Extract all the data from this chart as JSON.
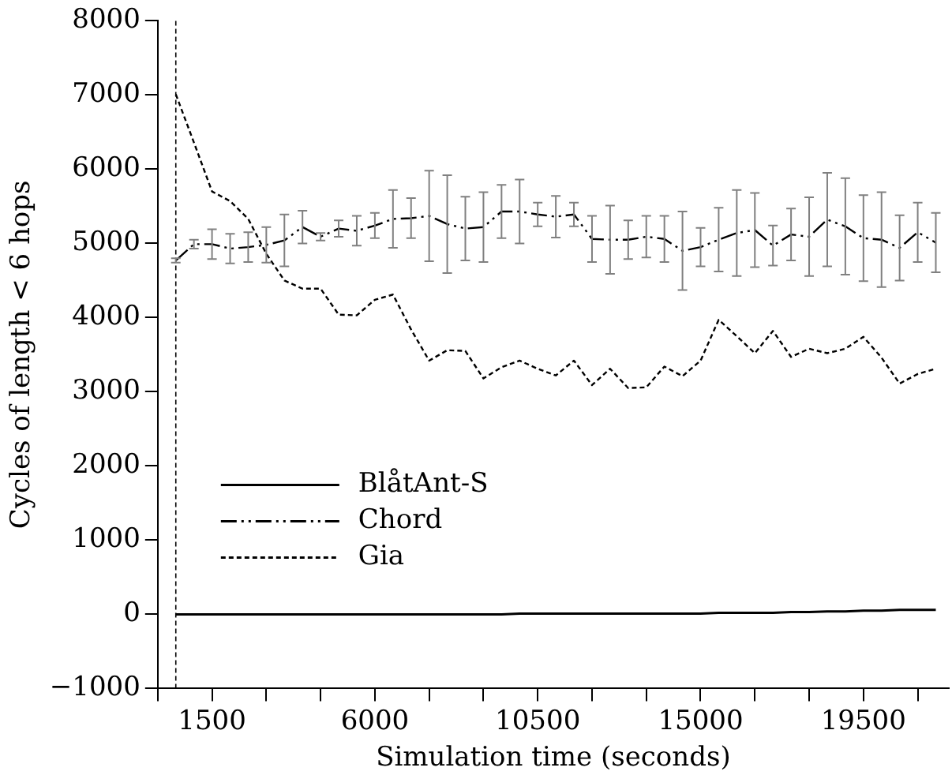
{
  "chart_data": {
    "type": "line",
    "xlabel": "Simulation time (seconds)",
    "ylabel": "Cycles of length < 6 hops",
    "x": [
      500,
      1000,
      1500,
      2000,
      2500,
      3000,
      3500,
      4000,
      4500,
      5000,
      5500,
      6000,
      6500,
      7000,
      7500,
      8000,
      8500,
      9000,
      9500,
      10000,
      10500,
      11000,
      11500,
      12000,
      12500,
      13000,
      13500,
      14000,
      14500,
      15000,
      15500,
      16000,
      16500,
      17000,
      17500,
      18000,
      18500,
      19000,
      19500,
      20000,
      20500,
      21000,
      21500
    ],
    "series": [
      {
        "name": "BlåtAnt-S",
        "color": "#000000",
        "line_style": "solid",
        "values": [
          0,
          0,
          0,
          0,
          0,
          0,
          0,
          0,
          0,
          0,
          0,
          0,
          0,
          0,
          0,
          0,
          0,
          0,
          0,
          10,
          10,
          10,
          10,
          10,
          10,
          10,
          10,
          10,
          10,
          10,
          20,
          20,
          20,
          20,
          30,
          30,
          40,
          40,
          50,
          50,
          60,
          60,
          60
        ]
      },
      {
        "name": "Chord",
        "color": "#000000",
        "line_style": "dashed",
        "values": [
          4770,
          4990,
          4990,
          4930,
          4950,
          4980,
          5040,
          5220,
          5090,
          5200,
          5170,
          5240,
          5330,
          5340,
          5370,
          5260,
          5200,
          5220,
          5430,
          5430,
          5390,
          5360,
          5390,
          5060,
          5050,
          5050,
          5090,
          5060,
          4900,
          4950,
          5050,
          5140,
          5180,
          4970,
          5120,
          5090,
          5320,
          5230,
          5070,
          5050,
          4940,
          5150,
          5010
        ],
        "errors": [
          30,
          60,
          200,
          200,
          200,
          240,
          350,
          220,
          50,
          110,
          200,
          170,
          390,
          270,
          610,
          660,
          430,
          470,
          360,
          430,
          160,
          280,
          160,
          310,
          460,
          260,
          280,
          310,
          530,
          260,
          430,
          580,
          500,
          270,
          350,
          530,
          630,
          650,
          580,
          640,
          440,
          400,
          400
        ]
      },
      {
        "name": "Gia",
        "color": "#000000",
        "line_style": "dotted",
        "values": [
          7010,
          6360,
          5700,
          5570,
          5330,
          4860,
          4500,
          4390,
          4390,
          4040,
          4030,
          4240,
          4310,
          3840,
          3420,
          3560,
          3550,
          3180,
          3330,
          3420,
          3310,
          3220,
          3420,
          3090,
          3310,
          3050,
          3060,
          3340,
          3210,
          3420,
          3970,
          3750,
          3520,
          3820,
          3470,
          3580,
          3520,
          3580,
          3740,
          3460,
          3110,
          3240,
          3310
        ]
      }
    ],
    "xlim": [
      0,
      21860
    ],
    "xticks": [
      {
        "value": 0,
        "label": null
      },
      {
        "value": 1500,
        "label": "1500"
      },
      {
        "value": 3000,
        "label": null
      },
      {
        "value": 4500,
        "label": null
      },
      {
        "value": 6000,
        "label": "6000"
      },
      {
        "value": 7500,
        "label": null
      },
      {
        "value": 9000,
        "label": null
      },
      {
        "value": 10500,
        "label": "10500"
      },
      {
        "value": 12000,
        "label": null
      },
      {
        "value": 13500,
        "label": null
      },
      {
        "value": 15000,
        "label": "15000"
      },
      {
        "value": 16500,
        "label": null
      },
      {
        "value": 18000,
        "label": null
      },
      {
        "value": 19500,
        "label": "19500"
      },
      {
        "value": 21000,
        "label": null
      }
    ],
    "ylim": [
      -1000,
      8000
    ],
    "yticks": [
      -1000,
      0,
      1000,
      2000,
      3000,
      4000,
      5000,
      6000,
      7000,
      8000
    ],
    "ref_lines": [
      {
        "axis": "x",
        "value": 500,
        "line_style": "dotted",
        "color": "#000000"
      }
    ],
    "legend": "bottom left",
    "grid": false,
    "marker": "none"
  }
}
